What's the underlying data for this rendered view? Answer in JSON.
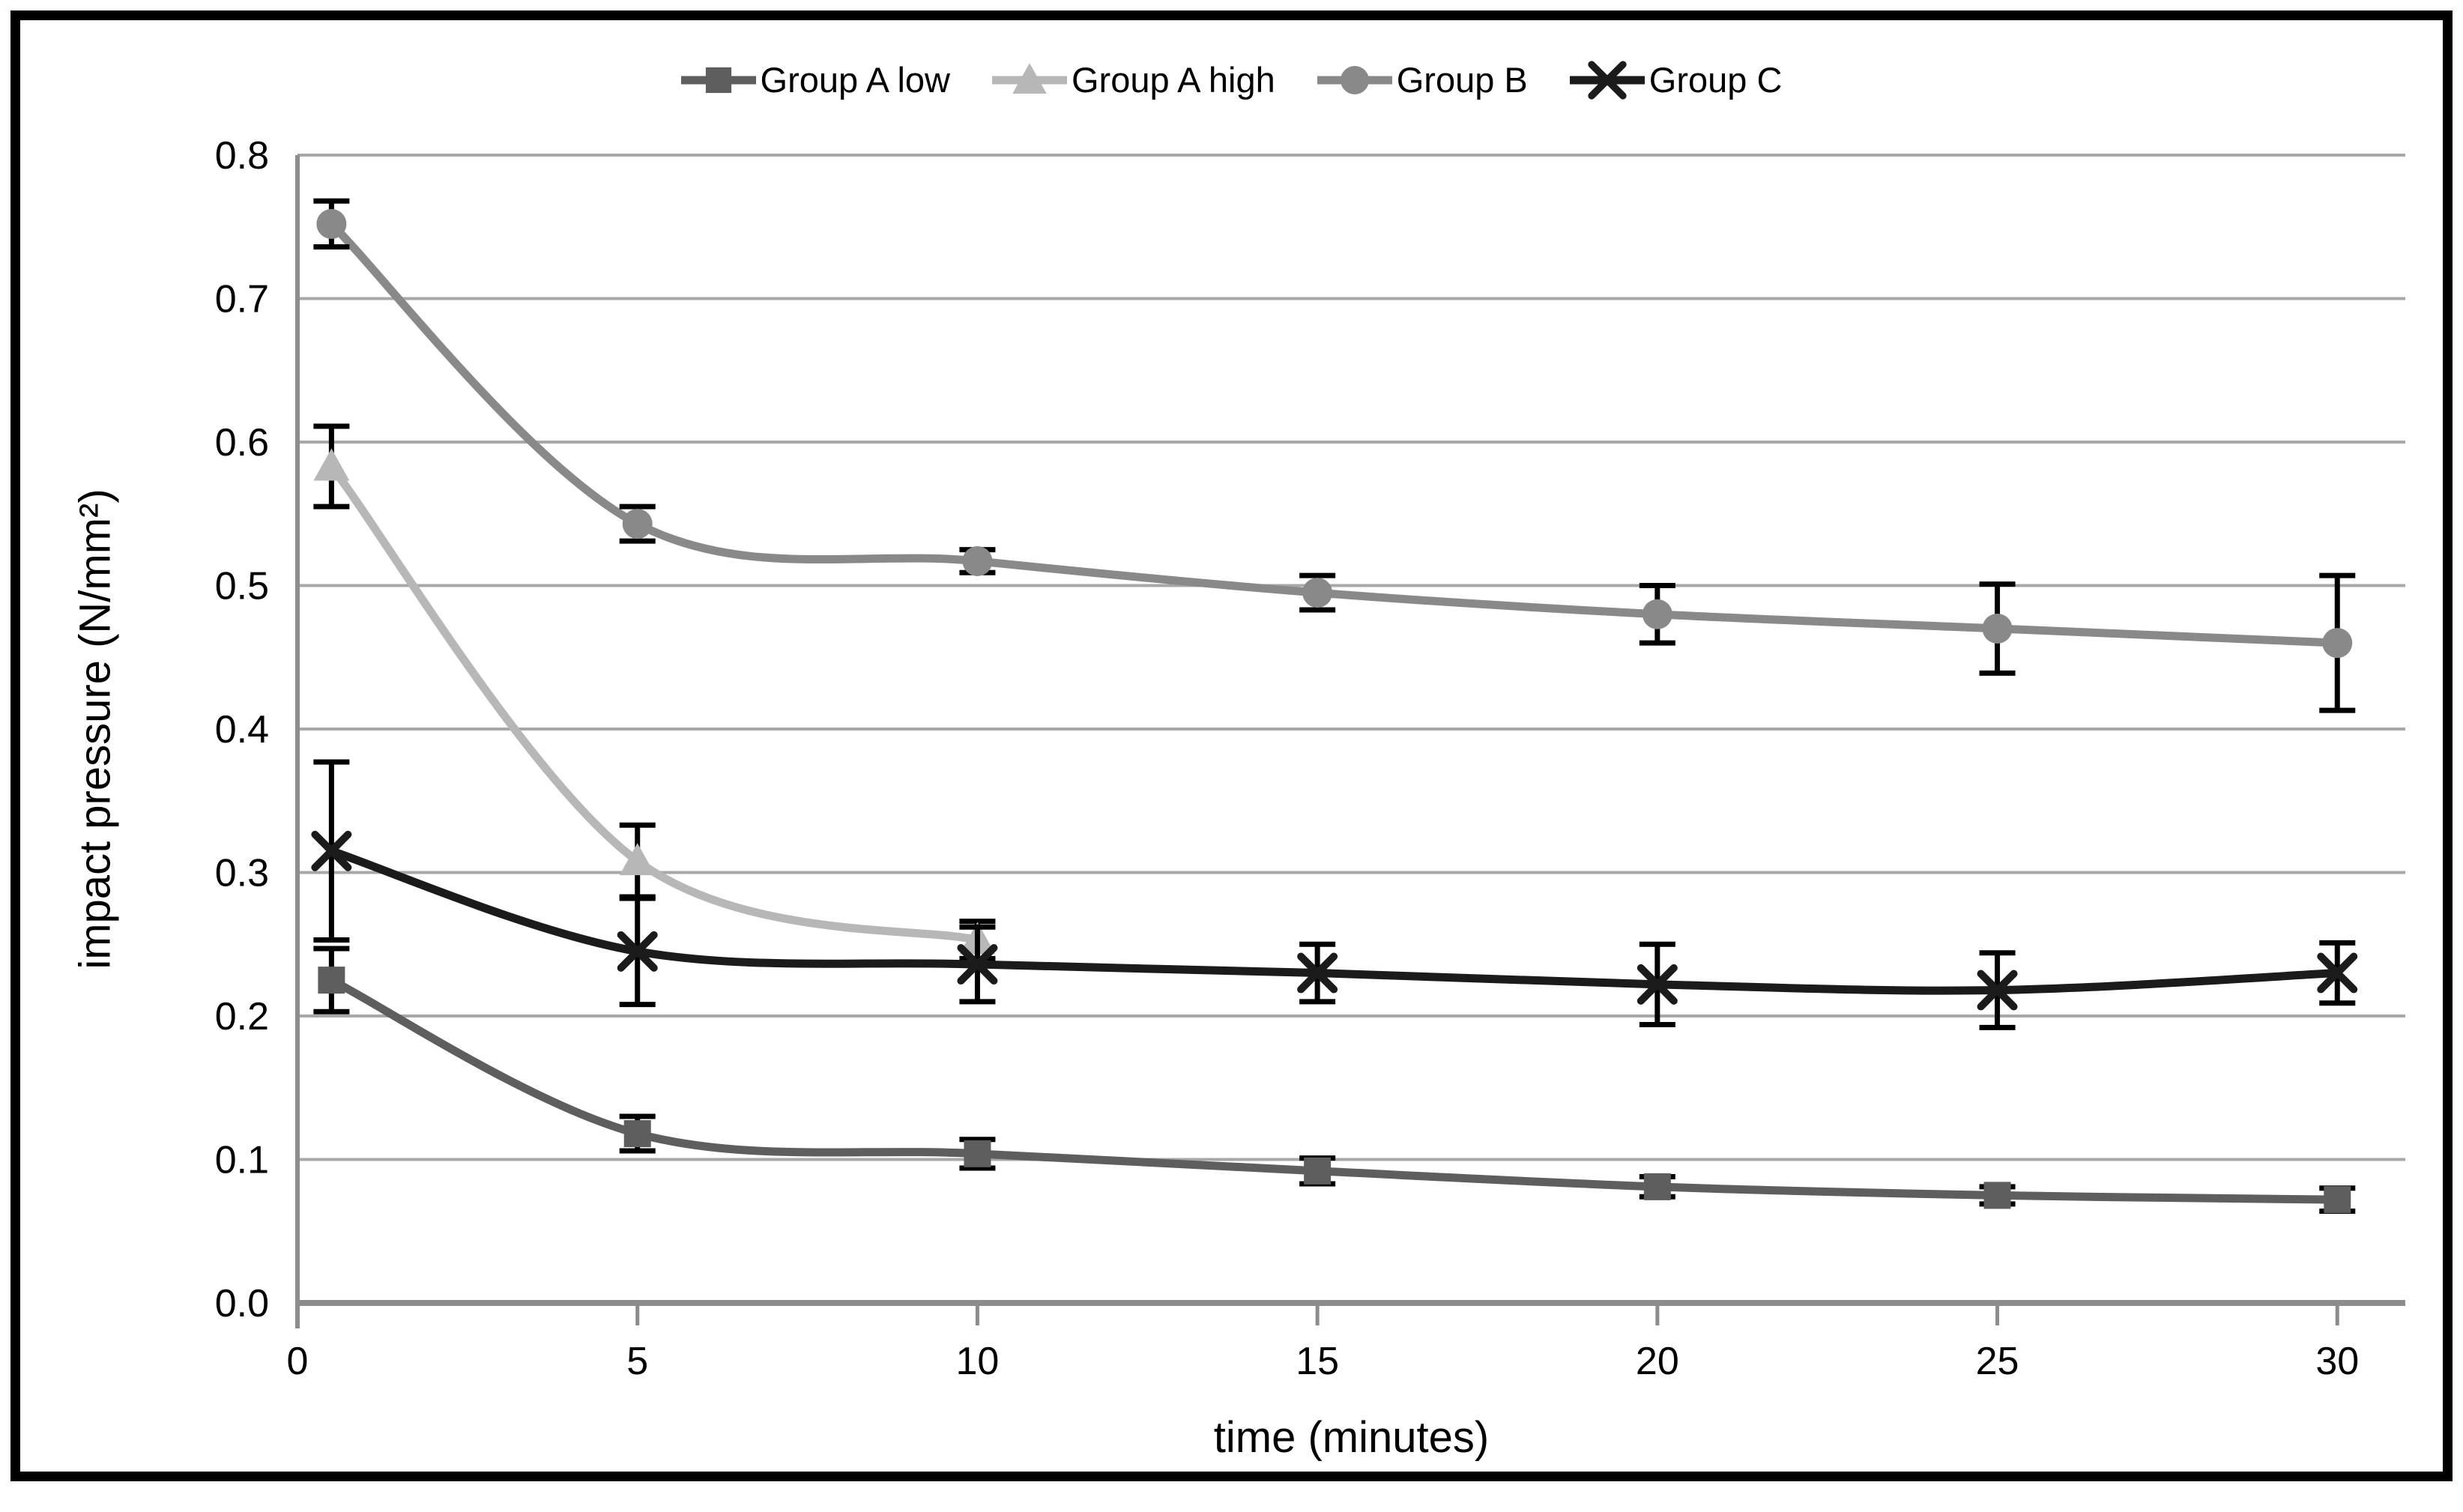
{
  "figure": {
    "background": "#ffffff",
    "border_color": "#000000",
    "text_color": "#000000",
    "grid_color": "#a8a8a8",
    "axis_color": "#8c8c8c",
    "error_bar_color": "#000000"
  },
  "chart_data": {
    "type": "line",
    "title": "",
    "xlabel": "time (minutes)",
    "ylabel": "impact pressure (N/mm²)",
    "x": [
      0.5,
      5,
      10,
      15,
      20,
      25,
      30
    ],
    "xlim": [
      0,
      31
    ],
    "ylim": [
      0,
      0.8
    ],
    "x_ticks": [
      0,
      5,
      10,
      15,
      20,
      25,
      30
    ],
    "y_ticks": [
      0.0,
      0.1,
      0.2,
      0.3,
      0.4,
      0.5,
      0.6,
      0.7,
      0.8
    ],
    "grid": true,
    "legend_position": "top",
    "line_smoothing": true,
    "error_bars": true,
    "series": [
      {
        "name": "Group A low",
        "marker": "square",
        "color": "#5e5e5e",
        "values": [
          0.225,
          0.118,
          0.104,
          0.092,
          0.081,
          0.075,
          0.072
        ],
        "errors": [
          0.022,
          0.012,
          0.01,
          0.009,
          0.007,
          0.006,
          0.008
        ]
      },
      {
        "name": "Group A high",
        "marker": "triangle",
        "color": "#b7b7b7",
        "x": [
          0.5,
          5,
          10
        ],
        "values": [
          0.583,
          0.308,
          0.253
        ],
        "errors": [
          0.028,
          0.025,
          0.013
        ]
      },
      {
        "name": "Group B",
        "marker": "circle",
        "color": "#898989",
        "values": [
          0.752,
          0.543,
          0.517,
          0.495,
          0.48,
          0.47,
          0.46
        ],
        "errors": [
          0.016,
          0.012,
          0.008,
          0.012,
          0.02,
          0.031,
          0.047
        ]
      },
      {
        "name": "Group C",
        "marker": "x",
        "color": "#1b1b1b",
        "values": [
          0.315,
          0.245,
          0.236,
          0.23,
          0.222,
          0.218,
          0.23
        ],
        "errors": [
          0.062,
          0.037,
          0.026,
          0.02,
          0.028,
          0.026,
          0.021
        ]
      }
    ]
  }
}
